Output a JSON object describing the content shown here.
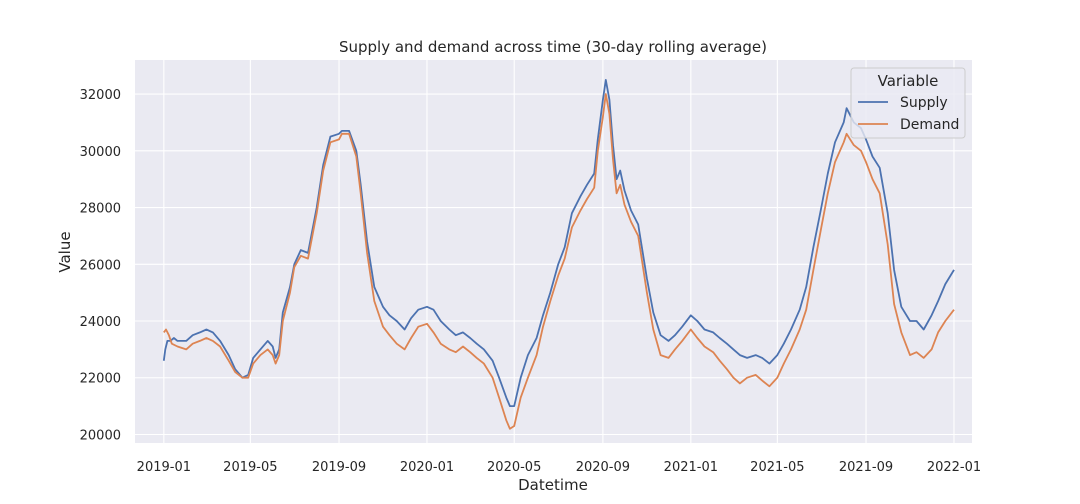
{
  "chart_data": {
    "type": "line",
    "title": "Supply and demand across time (30-day rolling average)",
    "xlabel": "Datetime",
    "ylabel": "Value",
    "x_range": [
      "2018-11-22",
      "2022-01-26"
    ],
    "ylim": [
      19700,
      33200
    ],
    "x_ticks": [
      {
        "date": "2019-01-01",
        "label": "2019-01"
      },
      {
        "date": "2019-05-01",
        "label": "2019-05"
      },
      {
        "date": "2019-09-01",
        "label": "2019-09"
      },
      {
        "date": "2020-01-01",
        "label": "2020-01"
      },
      {
        "date": "2020-05-01",
        "label": "2020-05"
      },
      {
        "date": "2020-09-01",
        "label": "2020-09"
      },
      {
        "date": "2021-01-01",
        "label": "2021-01"
      },
      {
        "date": "2021-05-01",
        "label": "2021-05"
      },
      {
        "date": "2021-09-01",
        "label": "2021-09"
      },
      {
        "date": "2022-01-01",
        "label": "2022-01"
      }
    ],
    "y_ticks": [
      {
        "value": 20000,
        "label": "20000"
      },
      {
        "value": 22000,
        "label": "22000"
      },
      {
        "value": 24000,
        "label": "24000"
      },
      {
        "value": 26000,
        "label": "26000"
      },
      {
        "value": 28000,
        "label": "28000"
      },
      {
        "value": 30000,
        "label": "30000"
      },
      {
        "value": 32000,
        "label": "32000"
      }
    ],
    "grid": true,
    "legend": {
      "title": "Variable",
      "position": "top-right"
    },
    "colors": {
      "background": "#eaeaf2",
      "grid": "#ffffff",
      "text": "#262626"
    },
    "series": [
      {
        "name": "Supply",
        "color": "#4c72b0",
        "points": [
          [
            "2019-01-01",
            22600
          ],
          [
            "2019-01-03",
            23000
          ],
          [
            "2019-01-06",
            23300
          ],
          [
            "2019-01-10",
            23300
          ],
          [
            "2019-01-15",
            23400
          ],
          [
            "2019-01-20",
            23300
          ],
          [
            "2019-02-01",
            23300
          ],
          [
            "2019-02-10",
            23500
          ],
          [
            "2019-02-20",
            23600
          ],
          [
            "2019-03-01",
            23700
          ],
          [
            "2019-03-10",
            23600
          ],
          [
            "2019-03-20",
            23300
          ],
          [
            "2019-04-01",
            22800
          ],
          [
            "2019-04-10",
            22300
          ],
          [
            "2019-04-20",
            22000
          ],
          [
            "2019-04-28",
            22100
          ],
          [
            "2019-05-05",
            22700
          ],
          [
            "2019-05-15",
            23000
          ],
          [
            "2019-05-25",
            23300
          ],
          [
            "2019-06-01",
            23100
          ],
          [
            "2019-06-05",
            22700
          ],
          [
            "2019-06-10",
            23000
          ],
          [
            "2019-06-15",
            24300
          ],
          [
            "2019-06-25",
            25200
          ],
          [
            "2019-07-01",
            26000
          ],
          [
            "2019-07-10",
            26500
          ],
          [
            "2019-07-20",
            26400
          ],
          [
            "2019-08-01",
            28000
          ],
          [
            "2019-08-10",
            29500
          ],
          [
            "2019-08-20",
            30500
          ],
          [
            "2019-09-01",
            30600
          ],
          [
            "2019-09-05",
            30700
          ],
          [
            "2019-09-15",
            30700
          ],
          [
            "2019-09-25",
            30000
          ],
          [
            "2019-10-01",
            28800
          ],
          [
            "2019-10-10",
            26800
          ],
          [
            "2019-10-20",
            25200
          ],
          [
            "2019-11-01",
            24500
          ],
          [
            "2019-11-10",
            24200
          ],
          [
            "2019-11-20",
            24000
          ],
          [
            "2019-12-01",
            23700
          ],
          [
            "2019-12-10",
            24100
          ],
          [
            "2019-12-20",
            24400
          ],
          [
            "2020-01-01",
            24500
          ],
          [
            "2020-01-10",
            24400
          ],
          [
            "2020-01-20",
            24000
          ],
          [
            "2020-02-01",
            23700
          ],
          [
            "2020-02-10",
            23500
          ],
          [
            "2020-02-20",
            23600
          ],
          [
            "2020-03-01",
            23400
          ],
          [
            "2020-03-10",
            23200
          ],
          [
            "2020-03-20",
            23000
          ],
          [
            "2020-04-01",
            22600
          ],
          [
            "2020-04-10",
            22000
          ],
          [
            "2020-04-20",
            21300
          ],
          [
            "2020-04-25",
            21000
          ],
          [
            "2020-05-01",
            21000
          ],
          [
            "2020-05-10",
            22000
          ],
          [
            "2020-05-20",
            22800
          ],
          [
            "2020-06-01",
            23400
          ],
          [
            "2020-06-10",
            24200
          ],
          [
            "2020-06-20",
            25000
          ],
          [
            "2020-07-01",
            26000
          ],
          [
            "2020-07-10",
            26600
          ],
          [
            "2020-07-20",
            27800
          ],
          [
            "2020-08-01",
            28400
          ],
          [
            "2020-08-10",
            28800
          ],
          [
            "2020-08-20",
            29200
          ],
          [
            "2020-08-25",
            30400
          ],
          [
            "2020-09-01",
            31800
          ],
          [
            "2020-09-05",
            32500
          ],
          [
            "2020-09-10",
            31800
          ],
          [
            "2020-09-15",
            30200
          ],
          [
            "2020-09-20",
            29000
          ],
          [
            "2020-09-25",
            29300
          ],
          [
            "2020-10-01",
            28600
          ],
          [
            "2020-10-10",
            27900
          ],
          [
            "2020-10-20",
            27400
          ],
          [
            "2020-11-01",
            25500
          ],
          [
            "2020-11-10",
            24300
          ],
          [
            "2020-11-20",
            23500
          ],
          [
            "2020-12-01",
            23300
          ],
          [
            "2020-12-10",
            23500
          ],
          [
            "2020-12-20",
            23800
          ],
          [
            "2021-01-01",
            24200
          ],
          [
            "2021-01-10",
            24000
          ],
          [
            "2021-01-20",
            23700
          ],
          [
            "2021-02-01",
            23600
          ],
          [
            "2021-02-10",
            23400
          ],
          [
            "2021-02-20",
            23200
          ],
          [
            "2021-03-01",
            23000
          ],
          [
            "2021-03-10",
            22800
          ],
          [
            "2021-03-20",
            22700
          ],
          [
            "2021-04-01",
            22800
          ],
          [
            "2021-04-10",
            22700
          ],
          [
            "2021-04-20",
            22500
          ],
          [
            "2021-05-01",
            22800
          ],
          [
            "2021-05-10",
            23200
          ],
          [
            "2021-05-20",
            23700
          ],
          [
            "2021-06-01",
            24400
          ],
          [
            "2021-06-10",
            25200
          ],
          [
            "2021-06-20",
            26600
          ],
          [
            "2021-07-01",
            28000
          ],
          [
            "2021-07-10",
            29200
          ],
          [
            "2021-07-20",
            30300
          ],
          [
            "2021-08-01",
            31000
          ],
          [
            "2021-08-05",
            31500
          ],
          [
            "2021-08-15",
            31000
          ],
          [
            "2021-08-25",
            30800
          ],
          [
            "2021-09-01",
            30400
          ],
          [
            "2021-09-10",
            29800
          ],
          [
            "2021-09-20",
            29400
          ],
          [
            "2021-10-01",
            27800
          ],
          [
            "2021-10-10",
            25800
          ],
          [
            "2021-10-20",
            24500
          ],
          [
            "2021-11-01",
            24000
          ],
          [
            "2021-11-10",
            24000
          ],
          [
            "2021-11-20",
            23700
          ],
          [
            "2021-12-01",
            24200
          ],
          [
            "2021-12-10",
            24700
          ],
          [
            "2021-12-20",
            25300
          ],
          [
            "2022-01-01",
            25800
          ]
        ]
      },
      {
        "name": "Demand",
        "color": "#dd8452",
        "points": [
          [
            "2019-01-01",
            23600
          ],
          [
            "2019-01-04",
            23700
          ],
          [
            "2019-01-08",
            23500
          ],
          [
            "2019-01-12",
            23200
          ],
          [
            "2019-01-20",
            23100
          ],
          [
            "2019-02-01",
            23000
          ],
          [
            "2019-02-10",
            23200
          ],
          [
            "2019-02-20",
            23300
          ],
          [
            "2019-03-01",
            23400
          ],
          [
            "2019-03-10",
            23300
          ],
          [
            "2019-03-20",
            23100
          ],
          [
            "2019-04-01",
            22600
          ],
          [
            "2019-04-10",
            22200
          ],
          [
            "2019-04-20",
            22000
          ],
          [
            "2019-04-28",
            22000
          ],
          [
            "2019-05-05",
            22500
          ],
          [
            "2019-05-15",
            22800
          ],
          [
            "2019-05-25",
            23000
          ],
          [
            "2019-06-01",
            22800
          ],
          [
            "2019-06-05",
            22500
          ],
          [
            "2019-06-10",
            22800
          ],
          [
            "2019-06-15",
            24000
          ],
          [
            "2019-06-25",
            25000
          ],
          [
            "2019-07-01",
            25900
          ],
          [
            "2019-07-10",
            26300
          ],
          [
            "2019-07-20",
            26200
          ],
          [
            "2019-08-01",
            27800
          ],
          [
            "2019-08-10",
            29300
          ],
          [
            "2019-08-20",
            30300
          ],
          [
            "2019-09-01",
            30400
          ],
          [
            "2019-09-05",
            30600
          ],
          [
            "2019-09-15",
            30600
          ],
          [
            "2019-09-25",
            29800
          ],
          [
            "2019-10-01",
            28500
          ],
          [
            "2019-10-10",
            26400
          ],
          [
            "2019-10-20",
            24700
          ],
          [
            "2019-11-01",
            23800
          ],
          [
            "2019-11-10",
            23500
          ],
          [
            "2019-11-20",
            23200
          ],
          [
            "2019-12-01",
            23000
          ],
          [
            "2019-12-10",
            23400
          ],
          [
            "2019-12-20",
            23800
          ],
          [
            "2020-01-01",
            23900
          ],
          [
            "2020-01-10",
            23600
          ],
          [
            "2020-01-20",
            23200
          ],
          [
            "2020-02-01",
            23000
          ],
          [
            "2020-02-10",
            22900
          ],
          [
            "2020-02-20",
            23100
          ],
          [
            "2020-03-01",
            22900
          ],
          [
            "2020-03-10",
            22700
          ],
          [
            "2020-03-20",
            22500
          ],
          [
            "2020-04-01",
            22000
          ],
          [
            "2020-04-10",
            21300
          ],
          [
            "2020-04-20",
            20500
          ],
          [
            "2020-04-25",
            20200
          ],
          [
            "2020-05-01",
            20300
          ],
          [
            "2020-05-10",
            21300
          ],
          [
            "2020-05-20",
            22000
          ],
          [
            "2020-06-01",
            22800
          ],
          [
            "2020-06-10",
            23800
          ],
          [
            "2020-06-20",
            24700
          ],
          [
            "2020-07-01",
            25600
          ],
          [
            "2020-07-10",
            26200
          ],
          [
            "2020-07-20",
            27300
          ],
          [
            "2020-08-01",
            27900
          ],
          [
            "2020-08-10",
            28300
          ],
          [
            "2020-08-20",
            28700
          ],
          [
            "2020-08-25",
            30000
          ],
          [
            "2020-09-01",
            31200
          ],
          [
            "2020-09-05",
            32000
          ],
          [
            "2020-09-10",
            31300
          ],
          [
            "2020-09-15",
            29700
          ],
          [
            "2020-09-20",
            28500
          ],
          [
            "2020-09-25",
            28800
          ],
          [
            "2020-10-01",
            28100
          ],
          [
            "2020-10-10",
            27500
          ],
          [
            "2020-10-20",
            27000
          ],
          [
            "2020-11-01",
            25000
          ],
          [
            "2020-11-10",
            23700
          ],
          [
            "2020-11-20",
            22800
          ],
          [
            "2020-12-01",
            22700
          ],
          [
            "2020-12-10",
            23000
          ],
          [
            "2020-12-20",
            23300
          ],
          [
            "2021-01-01",
            23700
          ],
          [
            "2021-01-10",
            23400
          ],
          [
            "2021-01-20",
            23100
          ],
          [
            "2021-02-01",
            22900
          ],
          [
            "2021-02-10",
            22600
          ],
          [
            "2021-02-20",
            22300
          ],
          [
            "2021-03-01",
            22000
          ],
          [
            "2021-03-10",
            21800
          ],
          [
            "2021-03-20",
            22000
          ],
          [
            "2021-04-01",
            22100
          ],
          [
            "2021-04-10",
            21900
          ],
          [
            "2021-04-20",
            21700
          ],
          [
            "2021-05-01",
            22000
          ],
          [
            "2021-05-10",
            22500
          ],
          [
            "2021-05-20",
            23000
          ],
          [
            "2021-06-01",
            23700
          ],
          [
            "2021-06-10",
            24400
          ],
          [
            "2021-06-20",
            25800
          ],
          [
            "2021-07-01",
            27300
          ],
          [
            "2021-07-10",
            28500
          ],
          [
            "2021-07-20",
            29600
          ],
          [
            "2021-08-01",
            30300
          ],
          [
            "2021-08-05",
            30600
          ],
          [
            "2021-08-15",
            30200
          ],
          [
            "2021-08-25",
            30000
          ],
          [
            "2021-09-01",
            29600
          ],
          [
            "2021-09-10",
            29000
          ],
          [
            "2021-09-20",
            28500
          ],
          [
            "2021-10-01",
            26700
          ],
          [
            "2021-10-10",
            24600
          ],
          [
            "2021-10-20",
            23600
          ],
          [
            "2021-11-01",
            22800
          ],
          [
            "2021-11-10",
            22900
          ],
          [
            "2021-11-20",
            22700
          ],
          [
            "2021-12-01",
            23000
          ],
          [
            "2021-12-10",
            23600
          ],
          [
            "2021-12-20",
            24000
          ],
          [
            "2022-01-01",
            24400
          ]
        ]
      }
    ]
  }
}
